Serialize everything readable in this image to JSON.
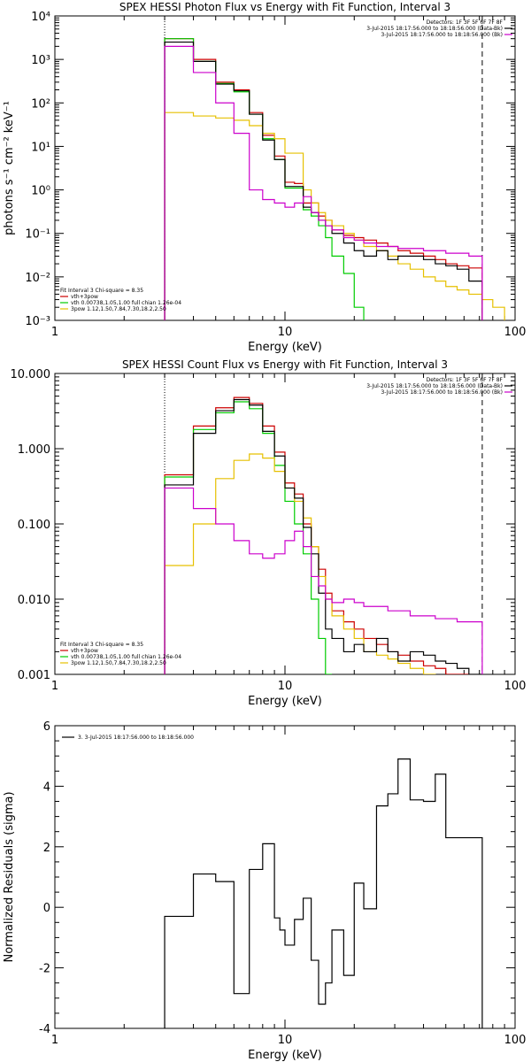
{
  "colors": {
    "axis": "#000000",
    "total": "#cc0000",
    "vth": "#00cc00",
    "pow": "#e6c000",
    "data": "#000000",
    "bk": "#cc00cc"
  },
  "chart_data": [
    {
      "type": "line",
      "title": "SPEX HESSI Photon Flux vs Energy with Fit Function, Interval 3",
      "xlabel": "Energy (keV)",
      "ylabel": "photons s⁻¹ cm⁻² keV⁻¹",
      "xscale": "log",
      "yscale": "log",
      "xlim": [
        1,
        100
      ],
      "ylim": [
        0.001,
        10000
      ],
      "x_ticks": [
        {
          "v": 1,
          "l": "1"
        },
        {
          "v": 10,
          "l": "10"
        },
        {
          "v": 100,
          "l": "100"
        }
      ],
      "y_ticks": [
        {
          "v": 0.001,
          "l": "10⁻³"
        },
        {
          "v": 0.01,
          "l": "10⁻²"
        },
        {
          "v": 0.1,
          "l": "10⁻¹"
        },
        {
          "v": 1,
          "l": "10⁰"
        },
        {
          "v": 10,
          "l": "10¹"
        },
        {
          "v": 100,
          "l": "10²"
        },
        {
          "v": 1000,
          "l": "10³"
        },
        {
          "v": 10000,
          "l": "10⁴"
        }
      ],
      "vlines": [
        {
          "x": 3,
          "style": "dotted"
        },
        {
          "x": 72,
          "style": "dashed"
        }
      ],
      "legend_right": [
        "Detectors: 1F 3F 5F 6F 7F 8F",
        "3-Jul-2015 18:17:56.000 to 18:18:56.000 (Data-Bk)",
        "3-Jul-2015 18:17:56.000 to 18:18:56.000 (Bk)"
      ],
      "legend_left": [
        "Fit Interval 3   Chi-square = 8.35",
        "vth+3pow",
        "vth 0.00738,1.05,1.00  full chian 1.26e-04",
        "3pow 1.12,1.50,7.84,7.30,18.2,2.50"
      ],
      "edges": [
        3,
        3.5,
        4,
        4.5,
        5,
        5.5,
        6,
        6.5,
        7,
        7.5,
        8,
        8.5,
        9,
        9.5,
        10,
        11,
        12,
        13,
        14,
        15,
        16,
        18,
        20,
        22,
        25,
        28,
        31,
        35,
        40,
        45,
        50,
        56,
        63,
        72,
        80,
        90
      ],
      "series": [
        {
          "name": "vth+3pow",
          "color_key": "total",
          "values": [
            3000,
            3000,
            1000,
            1000,
            300,
            300,
            200,
            200,
            60,
            60,
            18,
            18,
            6,
            6,
            1.5,
            1.4,
            0.5,
            0.5,
            0.25,
            0.2,
            0.12,
            0.09,
            0.08,
            0.07,
            0.06,
            0.05,
            0.04,
            0.035,
            0.03,
            0.025,
            0.02,
            0.018,
            0.016
          ]
        },
        {
          "name": "vth",
          "color_key": "vth",
          "values": [
            3000,
            3000,
            900,
            900,
            280,
            280,
            180,
            180,
            55,
            55,
            15,
            15,
            5,
            5,
            1.1,
            1.1,
            0.35,
            0.25,
            0.15,
            0.08,
            0.03,
            0.012,
            0.002,
            0.0005
          ]
        },
        {
          "name": "3pow",
          "color_key": "pow",
          "values": [
            60,
            60,
            50,
            50,
            45,
            45,
            40,
            40,
            30,
            30,
            20,
            20,
            15,
            15,
            7,
            7,
            1,
            0.5,
            0.3,
            0.2,
            0.15,
            0.1,
            0.07,
            0.05,
            0.04,
            0.03,
            0.02,
            0.015,
            0.01,
            0.008,
            0.006,
            0.005,
            0.004,
            0.003,
            0.002
          ]
        },
        {
          "name": "Data-Bk",
          "color_key": "data",
          "values": [
            2500,
            2500,
            900,
            900,
            270,
            270,
            190,
            190,
            55,
            55,
            14,
            14,
            5,
            5,
            1.2,
            1.2,
            0.4,
            0.3,
            0.2,
            0.15,
            0.1,
            0.06,
            0.04,
            0.03,
            0.04,
            0.025,
            0.03,
            0.03,
            0.025,
            0.02,
            0.018,
            0.015,
            0.008
          ]
        },
        {
          "name": "Bk",
          "color_key": "bk",
          "values": [
            2000,
            2000,
            500,
            500,
            100,
            100,
            20,
            20,
            1,
            1,
            0.6,
            0.6,
            0.5,
            0.5,
            0.4,
            0.5,
            0.7,
            0.3,
            0.2,
            0.15,
            0.12,
            0.08,
            0.07,
            0.06,
            0.05,
            0.05,
            0.045,
            0.045,
            0.04,
            0.04,
            0.035,
            0.035,
            0.03
          ]
        }
      ]
    },
    {
      "type": "line",
      "title": "SPEX HESSI Count Flux vs Energy with Fit Function, Interval 3",
      "xlabel": "Energy (keV)",
      "ylabel": "",
      "xscale": "log",
      "yscale": "log",
      "xlim": [
        1,
        100
      ],
      "ylim": [
        0.001,
        10
      ],
      "x_ticks": [
        {
          "v": 1,
          "l": "1"
        },
        {
          "v": 10,
          "l": "10"
        },
        {
          "v": 100,
          "l": "100"
        }
      ],
      "y_ticks": [
        {
          "v": 0.001,
          "l": "0.001"
        },
        {
          "v": 0.01,
          "l": "0.010"
        },
        {
          "v": 0.1,
          "l": "0.100"
        },
        {
          "v": 1,
          "l": "1.000"
        },
        {
          "v": 10,
          "l": "10.000"
        }
      ],
      "vlines": [
        {
          "x": 3,
          "style": "dotted"
        },
        {
          "x": 72,
          "style": "dashed"
        }
      ],
      "legend_right": [
        "Detectors: 1F 3F 5F 6F 7F 8F",
        "3-Jul-2015 18:17:56.000 to 18:18:56.000 (Data-Bk)",
        "3-Jul-2015 18:17:56.000 to 18:18:56.000 (Bk)"
      ],
      "legend_left": [
        "Fit Interval 3   Chi-square = 8.35",
        "vth+3pow",
        "vth 0.00738,1.05,1.00  full chian 1.26e-04",
        "3pow 1.12,1.50,7.84,7.30,18.2,2.50"
      ],
      "edges": [
        3,
        3.5,
        4,
        4.5,
        5,
        5.5,
        6,
        6.5,
        7,
        7.5,
        8,
        8.5,
        9,
        9.5,
        10,
        11,
        12,
        13,
        14,
        15,
        16,
        18,
        20,
        22,
        25,
        28,
        31,
        35,
        40,
        45,
        50,
        56,
        63,
        72
      ],
      "series": [
        {
          "name": "vth+3pow",
          "color_key": "total",
          "values": [
            0.45,
            0.45,
            2.0,
            2.0,
            3.5,
            3.5,
            4.8,
            4.8,
            4.0,
            4.0,
            2.0,
            2.0,
            0.9,
            0.9,
            0.35,
            0.25,
            0.1,
            0.05,
            0.025,
            0.012,
            0.007,
            0.005,
            0.004,
            0.003,
            0.0025,
            0.002,
            0.0018,
            0.0015,
            0.0013,
            0.0012,
            0.001,
            0.001,
            0.0009
          ]
        },
        {
          "name": "vth",
          "color_key": "vth",
          "values": [
            0.42,
            0.42,
            1.8,
            1.8,
            3.0,
            3.0,
            4.2,
            4.2,
            3.4,
            3.4,
            1.6,
            1.6,
            0.6,
            0.6,
            0.2,
            0.1,
            0.04,
            0.01,
            0.003,
            0.001
          ]
        },
        {
          "name": "3pow",
          "color_key": "pow",
          "values": [
            0.028,
            0.028,
            0.1,
            0.1,
            0.4,
            0.4,
            0.7,
            0.7,
            0.85,
            0.85,
            0.75,
            0.75,
            0.5,
            0.5,
            0.3,
            0.2,
            0.12,
            0.05,
            0.02,
            0.01,
            0.006,
            0.004,
            0.003,
            0.002,
            0.0018,
            0.0016,
            0.0014,
            0.0012,
            0.001,
            0.0009
          ]
        },
        {
          "name": "Data-Bk",
          "color_key": "data",
          "values": [
            0.33,
            0.33,
            1.6,
            1.6,
            3.2,
            3.2,
            4.5,
            4.5,
            3.8,
            3.8,
            1.7,
            1.7,
            0.8,
            0.8,
            0.3,
            0.22,
            0.09,
            0.04,
            0.012,
            0.004,
            0.003,
            0.002,
            0.0025,
            0.002,
            0.003,
            0.002,
            0.0015,
            0.002,
            0.0018,
            0.0015,
            0.0014,
            0.0012,
            0.001
          ]
        },
        {
          "name": "Bk",
          "color_key": "bk",
          "values": [
            0.3,
            0.3,
            0.16,
            0.16,
            0.1,
            0.1,
            0.06,
            0.06,
            0.04,
            0.04,
            0.035,
            0.035,
            0.04,
            0.04,
            0.06,
            0.08,
            0.05,
            0.02,
            0.015,
            0.01,
            0.009,
            0.01,
            0.009,
            0.008,
            0.008,
            0.007,
            0.007,
            0.006,
            0.006,
            0.0055,
            0.0055,
            0.005,
            0.005
          ]
        }
      ]
    },
    {
      "type": "line",
      "title": "",
      "xlabel": "Energy (keV)",
      "ylabel": "Normalized Residuals (sigma)",
      "xscale": "log",
      "yscale": "linear",
      "xlim": [
        1,
        100
      ],
      "ylim": [
        -4,
        6
      ],
      "x_ticks": [
        {
          "v": 1,
          "l": "1"
        },
        {
          "v": 10,
          "l": "10"
        },
        {
          "v": 100,
          "l": "100"
        }
      ],
      "y_ticks": [
        {
          "v": -4,
          "l": "-4"
        },
        {
          "v": -2,
          "l": "-2"
        },
        {
          "v": 0,
          "l": "0"
        },
        {
          "v": 2,
          "l": "2"
        },
        {
          "v": 4,
          "l": "4"
        },
        {
          "v": 6,
          "l": "6"
        }
      ],
      "legend": [
        "3. 3-Jul-2015 18:17:56.000 to 18:18:56.000"
      ],
      "edges": [
        3,
        3.5,
        4,
        4.5,
        5,
        5.5,
        6,
        6.5,
        7,
        7.5,
        8,
        8.5,
        9,
        9.5,
        10,
        11,
        12,
        13,
        14,
        15,
        16,
        18,
        20,
        22,
        25,
        28,
        31,
        35,
        40,
        45,
        50,
        56,
        63,
        72
      ],
      "series": [
        {
          "name": "3. 3-Jul-2015 18:17:56.000 to 18:18:56.000",
          "color_key": "data",
          "values": [
            -0.3,
            -0.3,
            1.1,
            1.1,
            0.85,
            0.85,
            -2.85,
            -2.85,
            1.25,
            1.25,
            2.1,
            2.1,
            -0.35,
            -0.75,
            -1.25,
            -0.4,
            0.3,
            -1.75,
            -3.2,
            -2.5,
            -0.75,
            -2.25,
            0.8,
            -0.05,
            3.35,
            3.75,
            4.9,
            3.55,
            3.5,
            4.4,
            2.3,
            2.3,
            2.3
          ]
        }
      ]
    }
  ]
}
